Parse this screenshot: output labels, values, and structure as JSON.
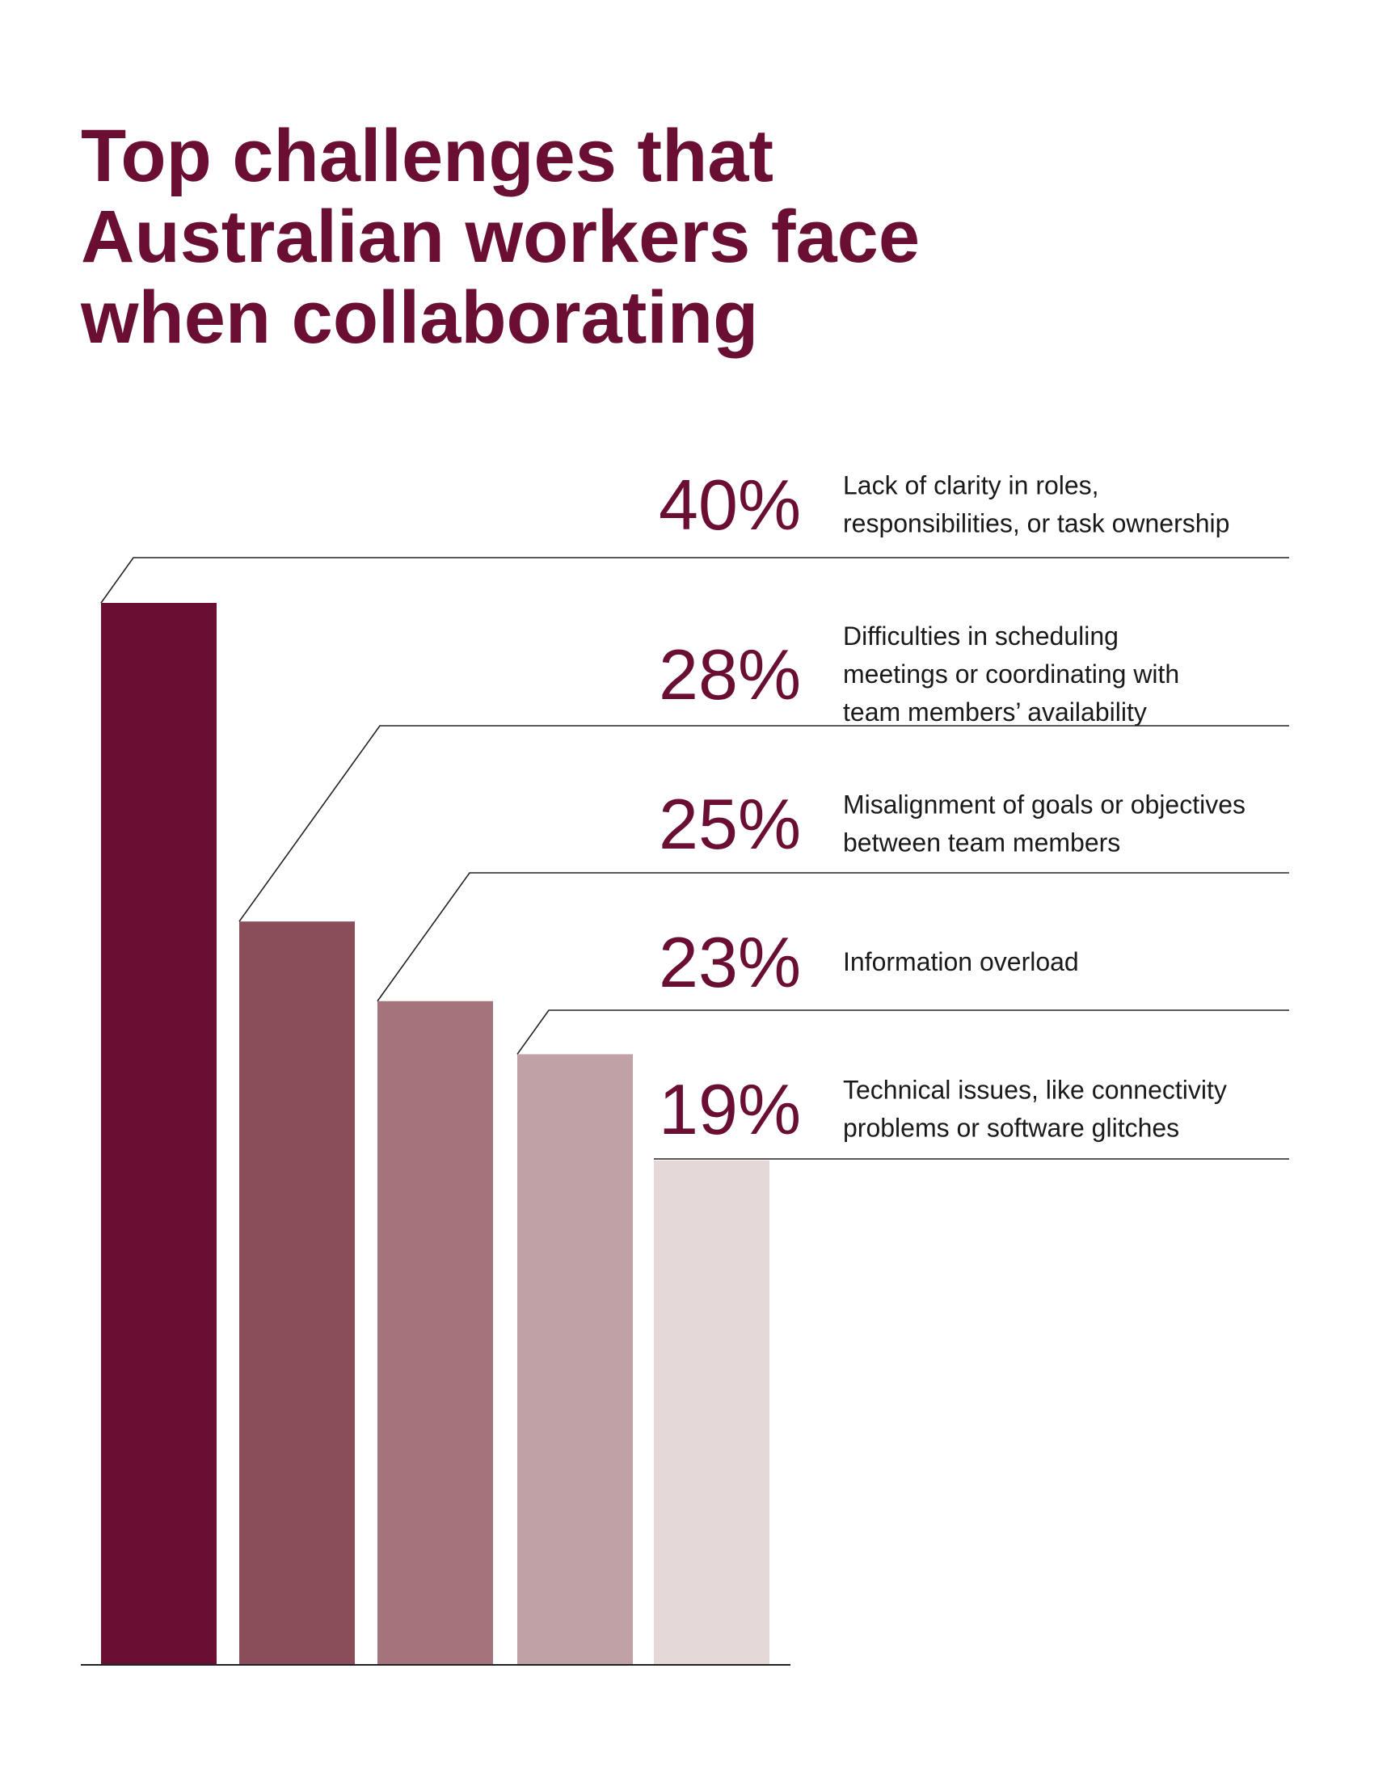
{
  "title_lines": [
    "Top challenges that",
    "Australian workers face",
    "when collaborating"
  ],
  "chart_data": {
    "type": "bar",
    "title": "Top challenges that Australian workers face when collaborating",
    "unit": "%",
    "ylim": [
      0,
      40
    ],
    "grid": false,
    "legend": "none",
    "categories": [
      [
        "Lack of clarity in roles,",
        "responsibilities, or task ownership"
      ],
      [
        "Difficulties in scheduling",
        "meetings or coordinating with",
        "team members’ availability"
      ],
      [
        "Misalignment of goals or objectives",
        "between team members"
      ],
      [
        "Information overload"
      ],
      [
        "Technical issues, like connectivity",
        "problems or software glitches"
      ]
    ],
    "values": [
      40,
      28,
      25,
      23,
      19
    ],
    "value_labels": [
      "40%",
      "28%",
      "25%",
      "23%",
      "19%"
    ],
    "colors": [
      "#6a0f33",
      "#8a4d5a",
      "#a4737b",
      "#c0a1a5",
      "#e5d8d9"
    ]
  }
}
